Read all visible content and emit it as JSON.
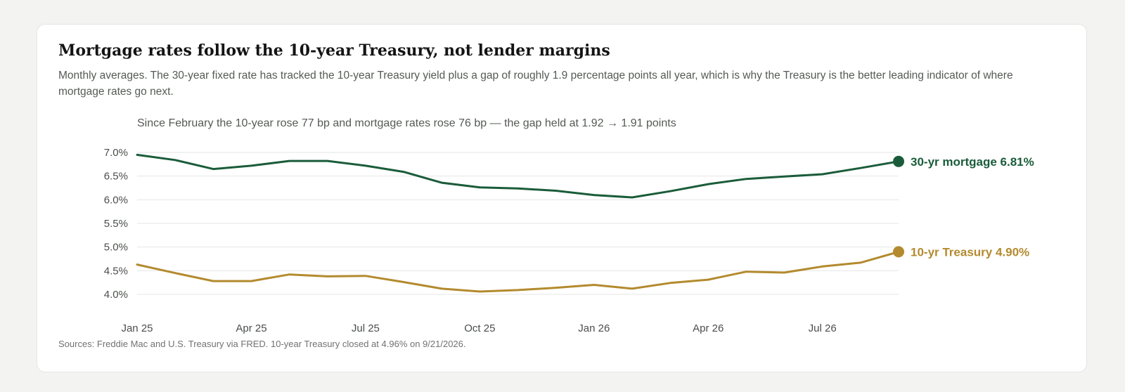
{
  "header": {
    "title": "Mortgage rates follow the 10-year Treasury, not lender margins",
    "subtitle": "Monthly averages. The 30-year fixed rate has tracked the 10-year Treasury yield plus a gap of roughly 1.9 percentage points all year, which is why the Treasury is the better leading indicator of where mortgage rates go next."
  },
  "footnote": "Sources: Freddie Mac and U.S. Treasury via FRED. 10-year Treasury closed at 4.96% on 9/21/2026.",
  "colors": {
    "mortgage": "#1a5c3a",
    "treasury": "#b38a2e",
    "grid": "#e6e6e6"
  },
  "chart_data": {
    "type": "line",
    "annotation": "Since February the 10-year rose 77 bp and mortgage rates rose 76 bp — the gap held at 1.92 → 1.91 points",
    "x": [
      "Jan 25",
      "Feb 25",
      "Mar 25",
      "Apr 25",
      "May 25",
      "Jun 25",
      "Jul 25",
      "Aug 25",
      "Sep 25",
      "Oct 25",
      "Nov 25",
      "Dec 25",
      "Jan 26",
      "Feb 26",
      "Mar 26",
      "Apr 26",
      "May 26",
      "Jun 26",
      "Jul 26",
      "Aug 26",
      "Sep 26"
    ],
    "x_tick_labels": [
      "Jan 25",
      "Apr 25",
      "Jul 25",
      "Oct 25",
      "Jan 26",
      "Apr 26",
      "Jul 26"
    ],
    "y_ticks": [
      4.0,
      4.5,
      5.0,
      5.5,
      6.0,
      6.5,
      7.0
    ],
    "y_tick_labels": [
      "4.0%",
      "4.5%",
      "5.0%",
      "5.5%",
      "6.0%",
      "6.5%",
      "7.0%"
    ],
    "ylim": [
      4.0,
      7.0
    ],
    "grid": true,
    "series": [
      {
        "name": "30-yr mortgage",
        "end_label": "30-yr mortgage 6.81%",
        "color": "#1a5c3a",
        "values": [
          6.95,
          6.84,
          6.65,
          6.72,
          6.82,
          6.82,
          6.72,
          6.59,
          6.36,
          6.26,
          6.24,
          6.19,
          6.1,
          6.05,
          6.18,
          6.33,
          6.44,
          6.49,
          6.54,
          6.67,
          6.81
        ]
      },
      {
        "name": "10-yr Treasury",
        "end_label": "10-yr Treasury 4.90%",
        "color": "#b38a2e",
        "values": [
          4.63,
          4.45,
          4.28,
          4.28,
          4.42,
          4.38,
          4.39,
          4.26,
          4.12,
          4.06,
          4.09,
          4.14,
          4.2,
          4.12,
          4.24,
          4.31,
          4.48,
          4.46,
          4.59,
          4.67,
          4.9
        ]
      }
    ]
  }
}
